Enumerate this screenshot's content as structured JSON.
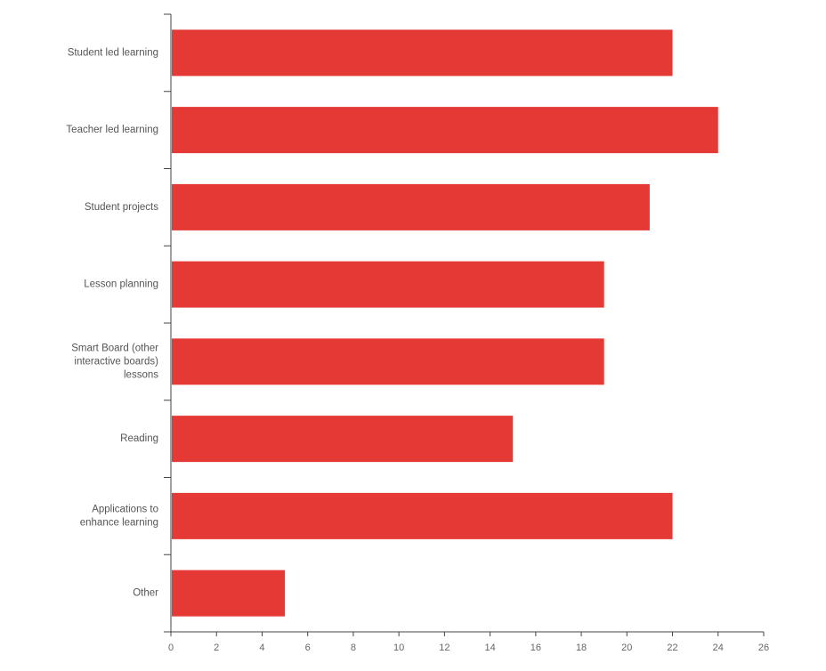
{
  "chart_data": {
    "type": "bar",
    "orientation": "horizontal",
    "categories": [
      "Student led learning",
      "Teacher led learning",
      "Student projects",
      "Lesson planning",
      "Smart Board (other interactive boards) lessons",
      "Reading",
      "Applications to enhance learning",
      "Other"
    ],
    "category_lines": [
      [
        "Student led learning"
      ],
      [
        "Teacher led learning"
      ],
      [
        "Student projects"
      ],
      [
        "Lesson planning"
      ],
      [
        "Smart Board (other",
        "interactive boards)",
        "lessons"
      ],
      [
        "Reading"
      ],
      [
        "Applications to",
        "enhance learning"
      ],
      [
        "Other"
      ]
    ],
    "values": [
      22,
      24,
      21,
      19,
      19,
      15,
      22,
      5
    ],
    "xlim": [
      0,
      26
    ],
    "xticks": [
      0,
      2,
      4,
      6,
      8,
      10,
      12,
      14,
      16,
      18,
      20,
      22,
      24,
      26
    ],
    "bar_color": "#e53935",
    "grid": false,
    "title": "",
    "xlabel": "",
    "ylabel": ""
  }
}
